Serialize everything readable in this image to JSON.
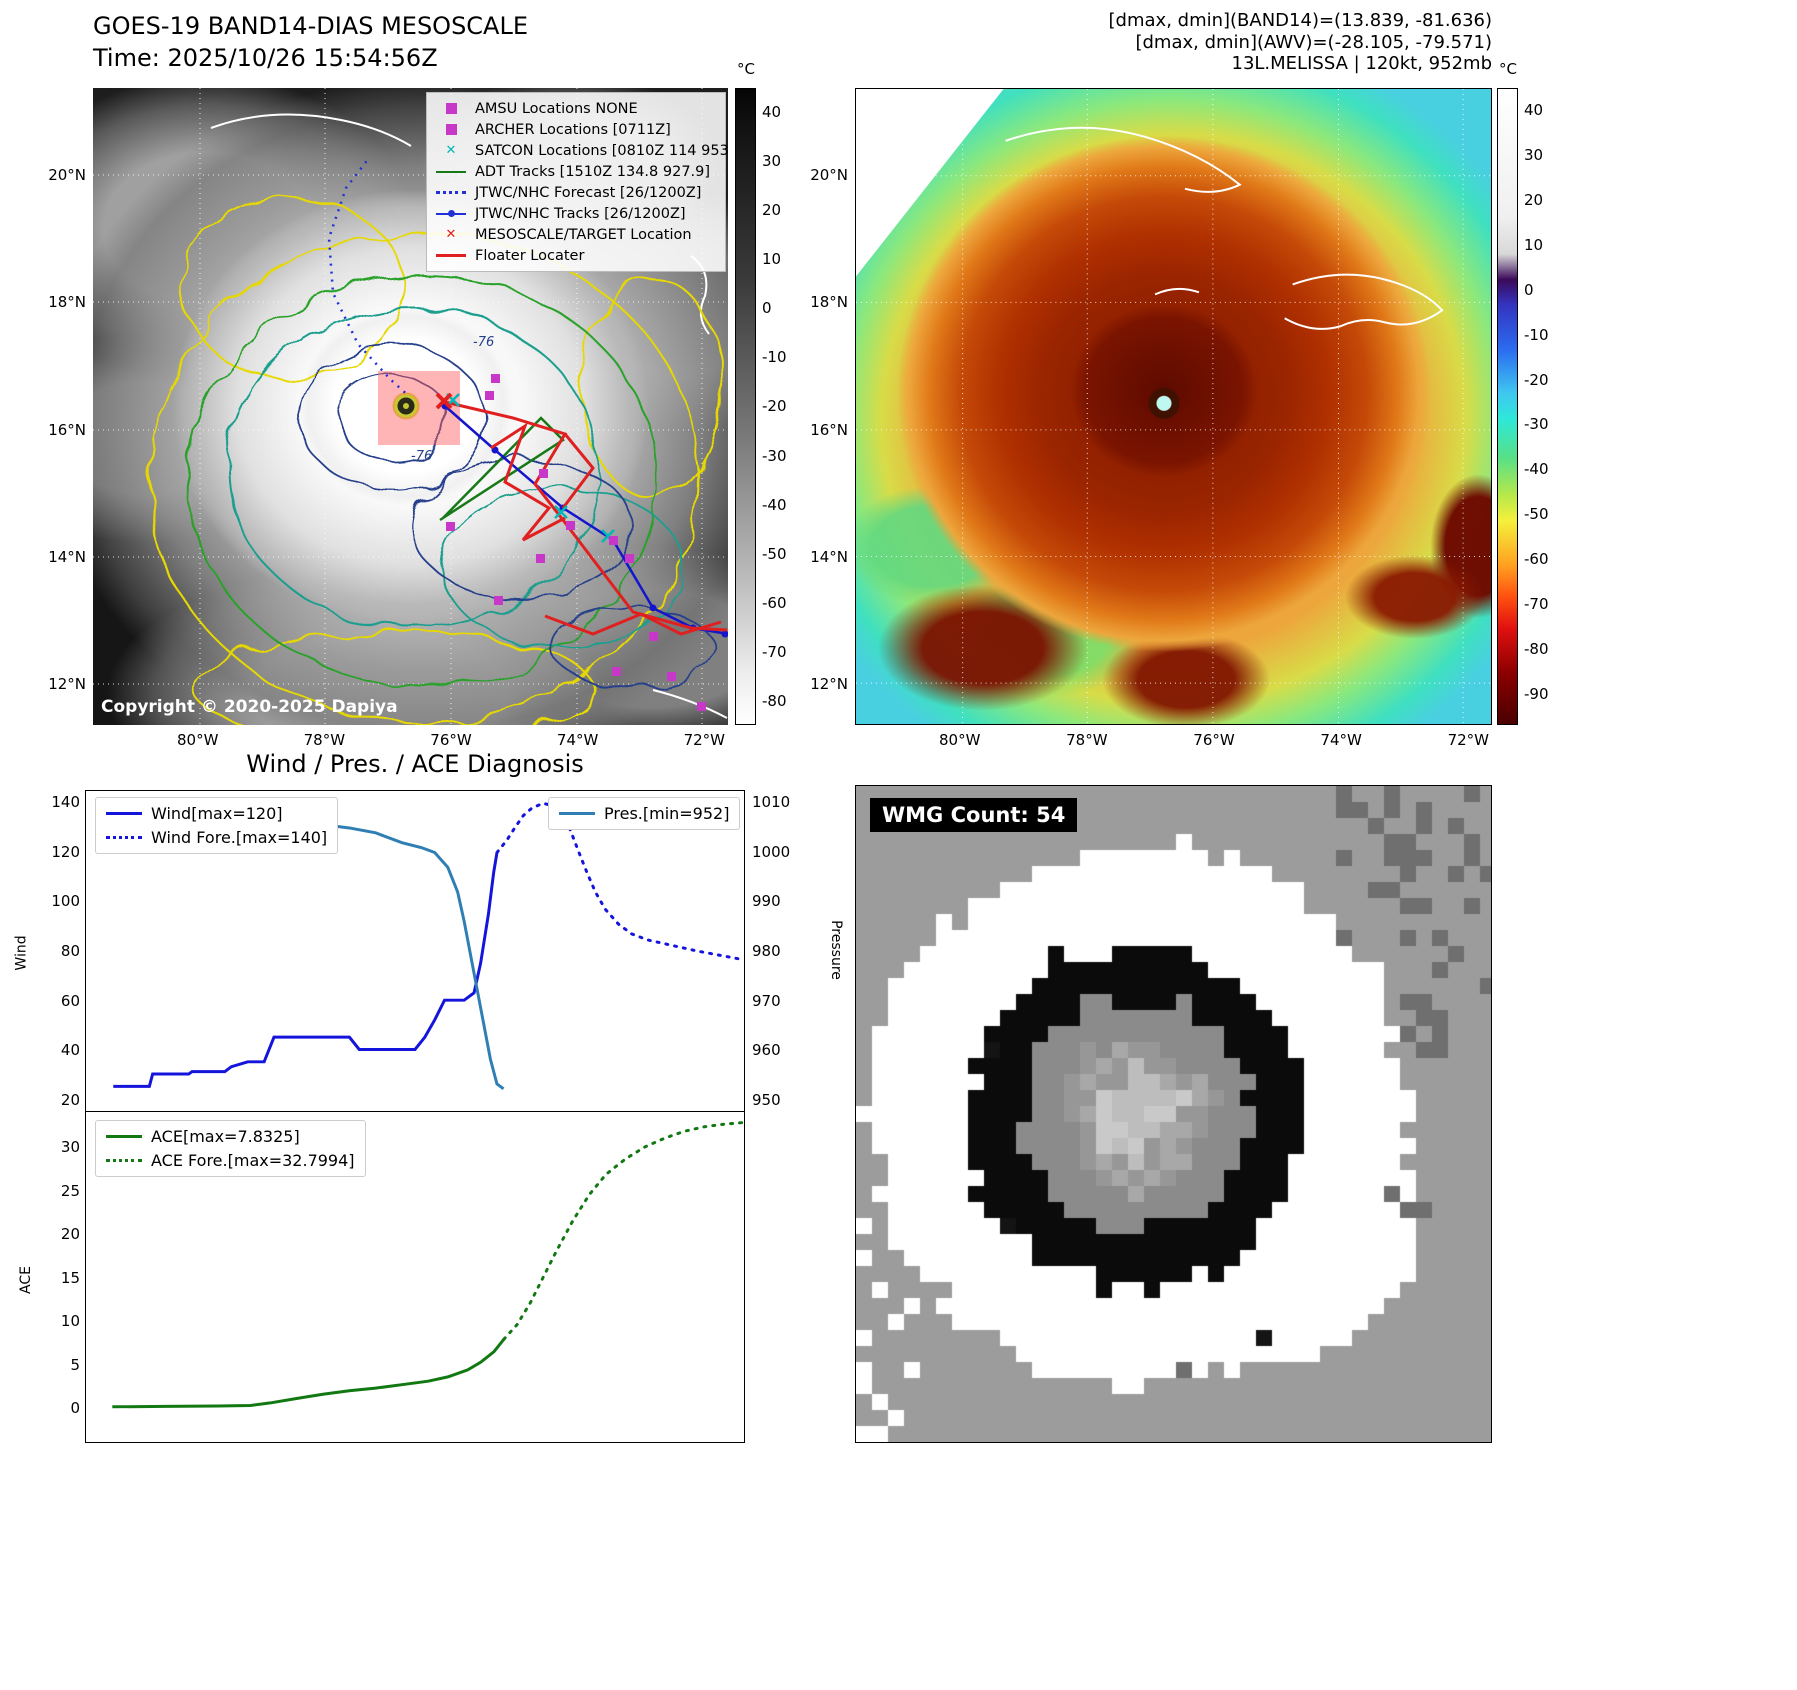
{
  "colors": {
    "wind": "#1414dc",
    "pressure": "#2f7eb4",
    "ace": "#127812",
    "forecast_blue": "#2230d8",
    "track_red": "#e02020",
    "adt_green": "#177a17",
    "marker_magenta": "#c838c8",
    "marker_cyan": "#00b8b8",
    "navy_contour": "#27408b"
  },
  "band14": {
    "title": "GOES-19 BAND14-DIAS MESOSCALE",
    "time": "Time: 2025/10/26 15:54:56Z",
    "copyright": "Copyright © 2020-2025 Dapiya",
    "colorbar_unit": "°C",
    "colorbar_ticks": [
      "40",
      "30",
      "20",
      "10",
      "0",
      "-10",
      "-20",
      "-30",
      "-40",
      "-50",
      "-60",
      "-70",
      "-80"
    ],
    "lat_ticks": [
      "20°N",
      "18°N",
      "16°N",
      "14°N",
      "12°N"
    ],
    "lon_ticks": [
      "80°W",
      "78°W",
      "76°W",
      "74°W",
      "72°W"
    ],
    "contour_labels": [
      "-76",
      "-76"
    ],
    "legend": [
      {
        "label": "AMSU Locations NONE",
        "marker": "square-magenta"
      },
      {
        "label": "ARCHER Locations [0711Z]",
        "marker": "square-magenta"
      },
      {
        "label": "SATCON Locations [0810Z 114 953]",
        "marker": "x-cyan"
      },
      {
        "label": "ADT Tracks [1510Z 134.8 927.9]",
        "marker": "line-green"
      },
      {
        "label": "JTWC/NHC Forecast [26/1200Z]",
        "marker": "dotted-blue"
      },
      {
        "label": "JTWC/NHC Tracks [26/1200Z]",
        "marker": "line-dot-blue"
      },
      {
        "label": "MESOSCALE/TARGET Location",
        "marker": "x-red"
      },
      {
        "label": "Floater Locater",
        "marker": "line-red"
      }
    ]
  },
  "awv": {
    "header_line1": "[dmax, dmin](BAND14)=(13.839, -81.636)",
    "header_line2": "[dmax, dmin](AWV)=(-28.105, -79.571)",
    "header_line3": "13L.MELISSA | 120kt, 952mb",
    "colorbar_unit": "°C",
    "colorbar_ticks": [
      "40",
      "30",
      "20",
      "10",
      "0",
      "-10",
      "-20",
      "-30",
      "-40",
      "-50",
      "-60",
      "-70",
      "-80",
      "-90"
    ],
    "lat_ticks": [
      "20°N",
      "18°N",
      "16°N",
      "14°N",
      "12°N"
    ],
    "lon_ticks": [
      "80°W",
      "78°W",
      "76°W",
      "74°W",
      "72°W"
    ]
  },
  "wmg": {
    "label": "WMG Count: 54"
  },
  "chart_data": [
    {
      "type": "line",
      "title": "Wind / Pres. / ACE Diagnosis",
      "x_range": [
        0,
        1
      ],
      "grid": false,
      "left_axis": {
        "label": "Wind",
        "range": [
          15,
          145
        ],
        "ticks": [
          140,
          120,
          100,
          80,
          60,
          40,
          20
        ]
      },
      "right_axis": {
        "label": "Pressure",
        "range": [
          947.5,
          1012.5
        ],
        "ticks": [
          1010,
          1000,
          990,
          980,
          970,
          960,
          950
        ]
      },
      "legend_left": [
        "Wind[max=120]",
        "Wind Fore.[max=140]"
      ],
      "legend_right": [
        "Pres.[min=952]"
      ],
      "series": [
        {
          "name": "Wind[max=120]",
          "axis": "left",
          "style": "solid",
          "color": "#1414dc",
          "points": [
            [
              0.04,
              25
            ],
            [
              0.095,
              25
            ],
            [
              0.1,
              30
            ],
            [
              0.155,
              30
            ],
            [
              0.16,
              31
            ],
            [
              0.21,
              31
            ],
            [
              0.22,
              33
            ],
            [
              0.245,
              35
            ],
            [
              0.27,
              35
            ],
            [
              0.285,
              45
            ],
            [
              0.4,
              45
            ],
            [
              0.415,
              40
            ],
            [
              0.5,
              40
            ],
            [
              0.515,
              45
            ],
            [
              0.53,
              52
            ],
            [
              0.545,
              60
            ],
            [
              0.575,
              60
            ],
            [
              0.59,
              63
            ],
            [
              0.6,
              75
            ],
            [
              0.612,
              95
            ],
            [
              0.62,
              112
            ],
            [
              0.625,
              120
            ]
          ]
        },
        {
          "name": "Wind Fore.[max=140]",
          "axis": "left",
          "style": "dotted",
          "color": "#1414dc",
          "points": [
            [
              0.625,
              120
            ],
            [
              0.64,
              125
            ],
            [
              0.652,
              130
            ],
            [
              0.665,
              135
            ],
            [
              0.678,
              138
            ],
            [
              0.695,
              140
            ],
            [
              0.712,
              139
            ],
            [
              0.725,
              135
            ],
            [
              0.737,
              129
            ],
            [
              0.75,
              120
            ],
            [
              0.762,
              112
            ],
            [
              0.775,
              104
            ],
            [
              0.79,
              97
            ],
            [
              0.81,
              91
            ],
            [
              0.83,
              87
            ],
            [
              0.855,
              84.5
            ],
            [
              0.88,
              83
            ],
            [
              0.905,
              81.5
            ],
            [
              0.93,
              80
            ],
            [
              0.96,
              78.5
            ],
            [
              1.0,
              76.5
            ]
          ]
        },
        {
          "name": "Pres.[min=952]",
          "axis": "right",
          "style": "solid",
          "color": "#2f7eb4",
          "points": [
            [
              0.04,
              1009
            ],
            [
              0.12,
              1009
            ],
            [
              0.2,
              1008
            ],
            [
              0.28,
              1007
            ],
            [
              0.34,
              1006
            ],
            [
              0.4,
              1005
            ],
            [
              0.44,
              1004
            ],
            [
              0.48,
              1002
            ],
            [
              0.51,
              1001
            ],
            [
              0.53,
              1000
            ],
            [
              0.55,
              997
            ],
            [
              0.565,
              992
            ],
            [
              0.575,
              986
            ],
            [
              0.585,
              979
            ],
            [
              0.595,
              972
            ],
            [
              0.605,
              965
            ],
            [
              0.615,
              958
            ],
            [
              0.625,
              953
            ],
            [
              0.635,
              952
            ]
          ]
        }
      ]
    },
    {
      "type": "line",
      "x_range": [
        0,
        1
      ],
      "grid": false,
      "left_axis": {
        "label": "ACE",
        "range": [
          -4,
          34
        ],
        "ticks": [
          30,
          25,
          20,
          15,
          10,
          5,
          0
        ]
      },
      "legend_left": [
        "ACE[max=7.8325]",
        "ACE Fore.[max=32.7994]"
      ],
      "series": [
        {
          "name": "ACE[max=7.8325]",
          "axis": "left",
          "style": "solid",
          "color": "#127812",
          "points": [
            [
              0.04,
              0.05
            ],
            [
              0.12,
              0.1
            ],
            [
              0.2,
              0.15
            ],
            [
              0.25,
              0.2
            ],
            [
              0.28,
              0.5
            ],
            [
              0.32,
              1.0
            ],
            [
              0.36,
              1.5
            ],
            [
              0.4,
              1.9
            ],
            [
              0.44,
              2.2
            ],
            [
              0.48,
              2.6
            ],
            [
              0.52,
              3.0
            ],
            [
              0.55,
              3.5
            ],
            [
              0.58,
              4.3
            ],
            [
              0.6,
              5.2
            ],
            [
              0.62,
              6.4
            ],
            [
              0.635,
              7.83
            ]
          ]
        },
        {
          "name": "ACE Fore.[max=32.7994]",
          "axis": "left",
          "style": "dotted",
          "color": "#127812",
          "points": [
            [
              0.635,
              7.83
            ],
            [
              0.655,
              9.5
            ],
            [
              0.675,
              12
            ],
            [
              0.695,
              15
            ],
            [
              0.715,
              18
            ],
            [
              0.74,
              21.5
            ],
            [
              0.765,
              24.5
            ],
            [
              0.79,
              26.8
            ],
            [
              0.82,
              28.6
            ],
            [
              0.85,
              30.0
            ],
            [
              0.88,
              31.0
            ],
            [
              0.91,
              31.8
            ],
            [
              0.94,
              32.3
            ],
            [
              0.97,
              32.6
            ],
            [
              1.0,
              32.8
            ]
          ]
        }
      ]
    }
  ]
}
